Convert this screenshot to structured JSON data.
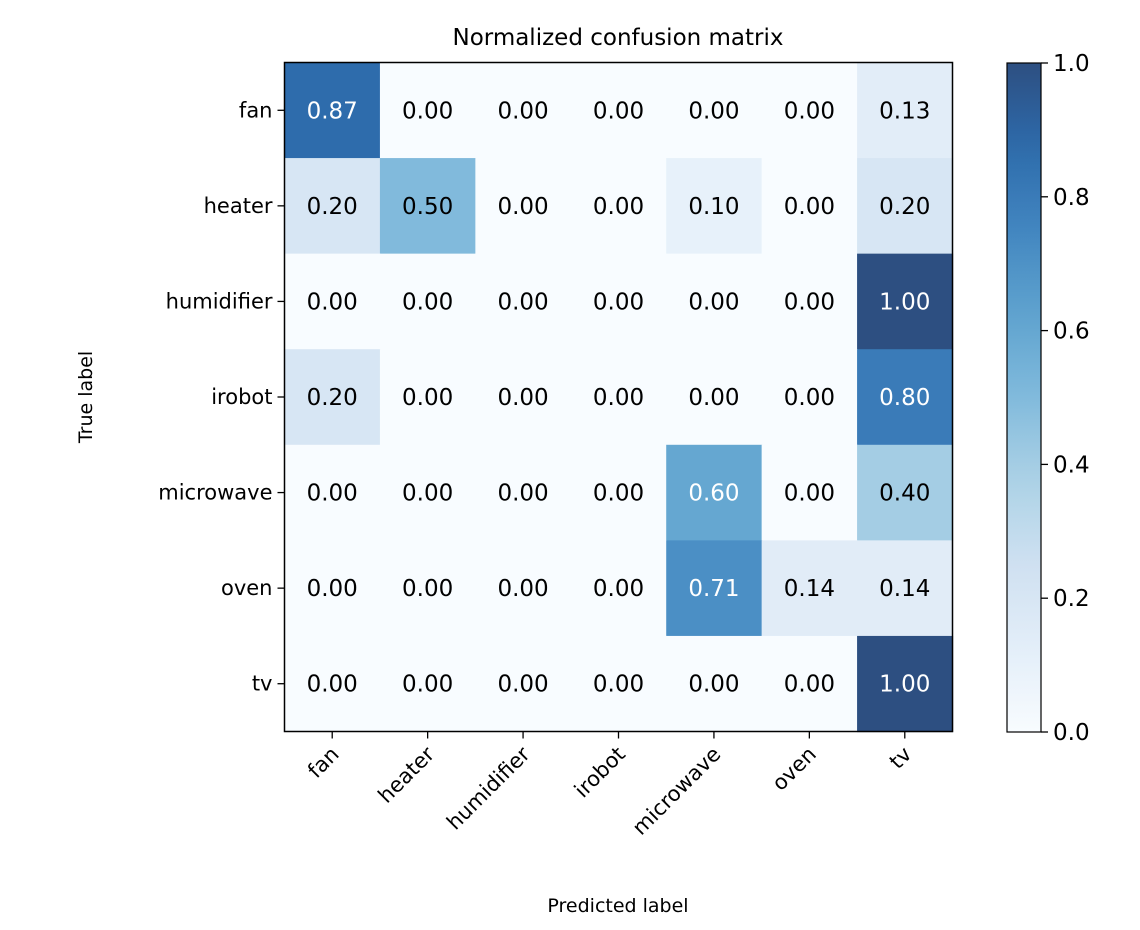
{
  "chart_data": {
    "type": "heatmap",
    "title": "Normalized confusion matrix",
    "xlabel": "Predicted label",
    "ylabel": "True label",
    "x_categories": [
      "fan",
      "heater",
      "humidifier",
      "irobot",
      "microwave",
      "oven",
      "tv"
    ],
    "y_categories": [
      "fan",
      "heater",
      "humidifier",
      "irobot",
      "microwave",
      "oven",
      "tv"
    ],
    "values": [
      [
        0.87,
        0.0,
        0.0,
        0.0,
        0.0,
        0.0,
        0.13
      ],
      [
        0.2,
        0.5,
        0.0,
        0.0,
        0.1,
        0.0,
        0.2
      ],
      [
        0.0,
        0.0,
        0.0,
        0.0,
        0.0,
        0.0,
        1.0
      ],
      [
        0.2,
        0.0,
        0.0,
        0.0,
        0.0,
        0.0,
        0.8
      ],
      [
        0.0,
        0.0,
        0.0,
        0.0,
        0.6,
        0.0,
        0.4
      ],
      [
        0.0,
        0.0,
        0.0,
        0.0,
        0.71,
        0.14,
        0.14
      ],
      [
        0.0,
        0.0,
        0.0,
        0.0,
        0.0,
        0.0,
        1.0
      ]
    ],
    "value_format": "0.00",
    "colormap": "Blues",
    "colorbar": {
      "range": [
        0.0,
        1.0
      ],
      "ticks": [
        0.0,
        0.2,
        0.4,
        0.6,
        0.8,
        1.0
      ],
      "tick_labels": [
        "0.0",
        "0.2",
        "0.4",
        "0.6",
        "0.8",
        "1.0"
      ]
    },
    "text_color_threshold": 0.5,
    "text_colors": {
      "light": "#ffffff",
      "dark": "#000000"
    },
    "grid": false
  }
}
